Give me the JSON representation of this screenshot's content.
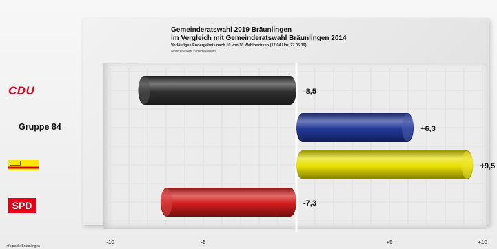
{
  "header": {
    "title": "Gemeinderatswahl 2019 Bräunlingen",
    "subtitle": "im Vergleich mit Gemeinderatswahl Bräunlingen 2014",
    "note": "Vorläufiges Endergebnis nach 10 von 10 Wahlbezirken (17:04 Uhr, 27.05.19)",
    "unit_note": "Gewinne/Verluste in Prozentpunkten"
  },
  "parties": {
    "cdu": "CDU",
    "gruppe84": "Gruppe 84",
    "spd": "SPD"
  },
  "footnote": "Infografik: Bräunlingen",
  "chart_data": {
    "type": "bar",
    "orientation": "horizontal",
    "categories": [
      "CDU",
      "Gruppe 84",
      "Freie Wähler",
      "SPD"
    ],
    "values": [
      -8.5,
      6.3,
      9.5,
      -7.3
    ],
    "value_labels": [
      "-8,5",
      "+6,3",
      "+9,5",
      "-7,3"
    ],
    "colors": [
      "#2f2f2f",
      "#22389a",
      "#e8e000",
      "#d21d1d"
    ],
    "xticks": [
      -10,
      -5,
      5,
      10
    ],
    "xtick_labels": [
      "-10",
      "-5",
      "+5",
      "+10"
    ],
    "xlim": [
      -11.5,
      13.5
    ],
    "grid": true
  }
}
